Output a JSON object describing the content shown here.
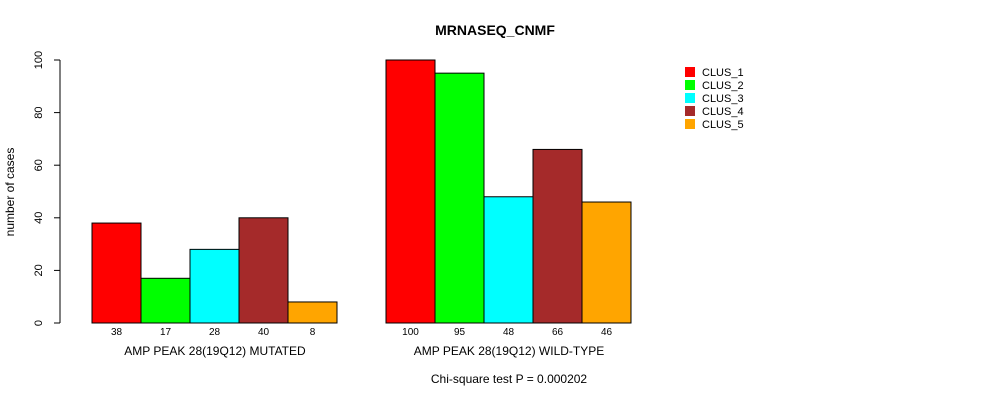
{
  "chart_data": {
    "type": "bar",
    "title": "MRNASEQ_CNMF",
    "ylabel": "number of cases",
    "ylim": [
      0,
      100
    ],
    "yticks": [
      0,
      20,
      40,
      60,
      80,
      100
    ],
    "groups": [
      "AMP PEAK 28(19Q12) MUTATED",
      "AMP PEAK 28(19Q12) WILD-TYPE"
    ],
    "series": [
      {
        "name": "CLUS_1",
        "color": "#ff0000",
        "values": [
          38,
          100
        ]
      },
      {
        "name": "CLUS_2",
        "color": "#00ff00",
        "values": [
          17,
          95
        ]
      },
      {
        "name": "CLUS_3",
        "color": "#00ffff",
        "values": [
          28,
          48
        ]
      },
      {
        "name": "CLUS_4",
        "color": "#a52a2a",
        "values": [
          40,
          66
        ]
      },
      {
        "name": "CLUS_5",
        "color": "#ffa500",
        "values": [
          8,
          46
        ]
      }
    ],
    "legend_position": "top-right",
    "grid": false,
    "footnote": "Chi-square test P = 0.000202"
  }
}
